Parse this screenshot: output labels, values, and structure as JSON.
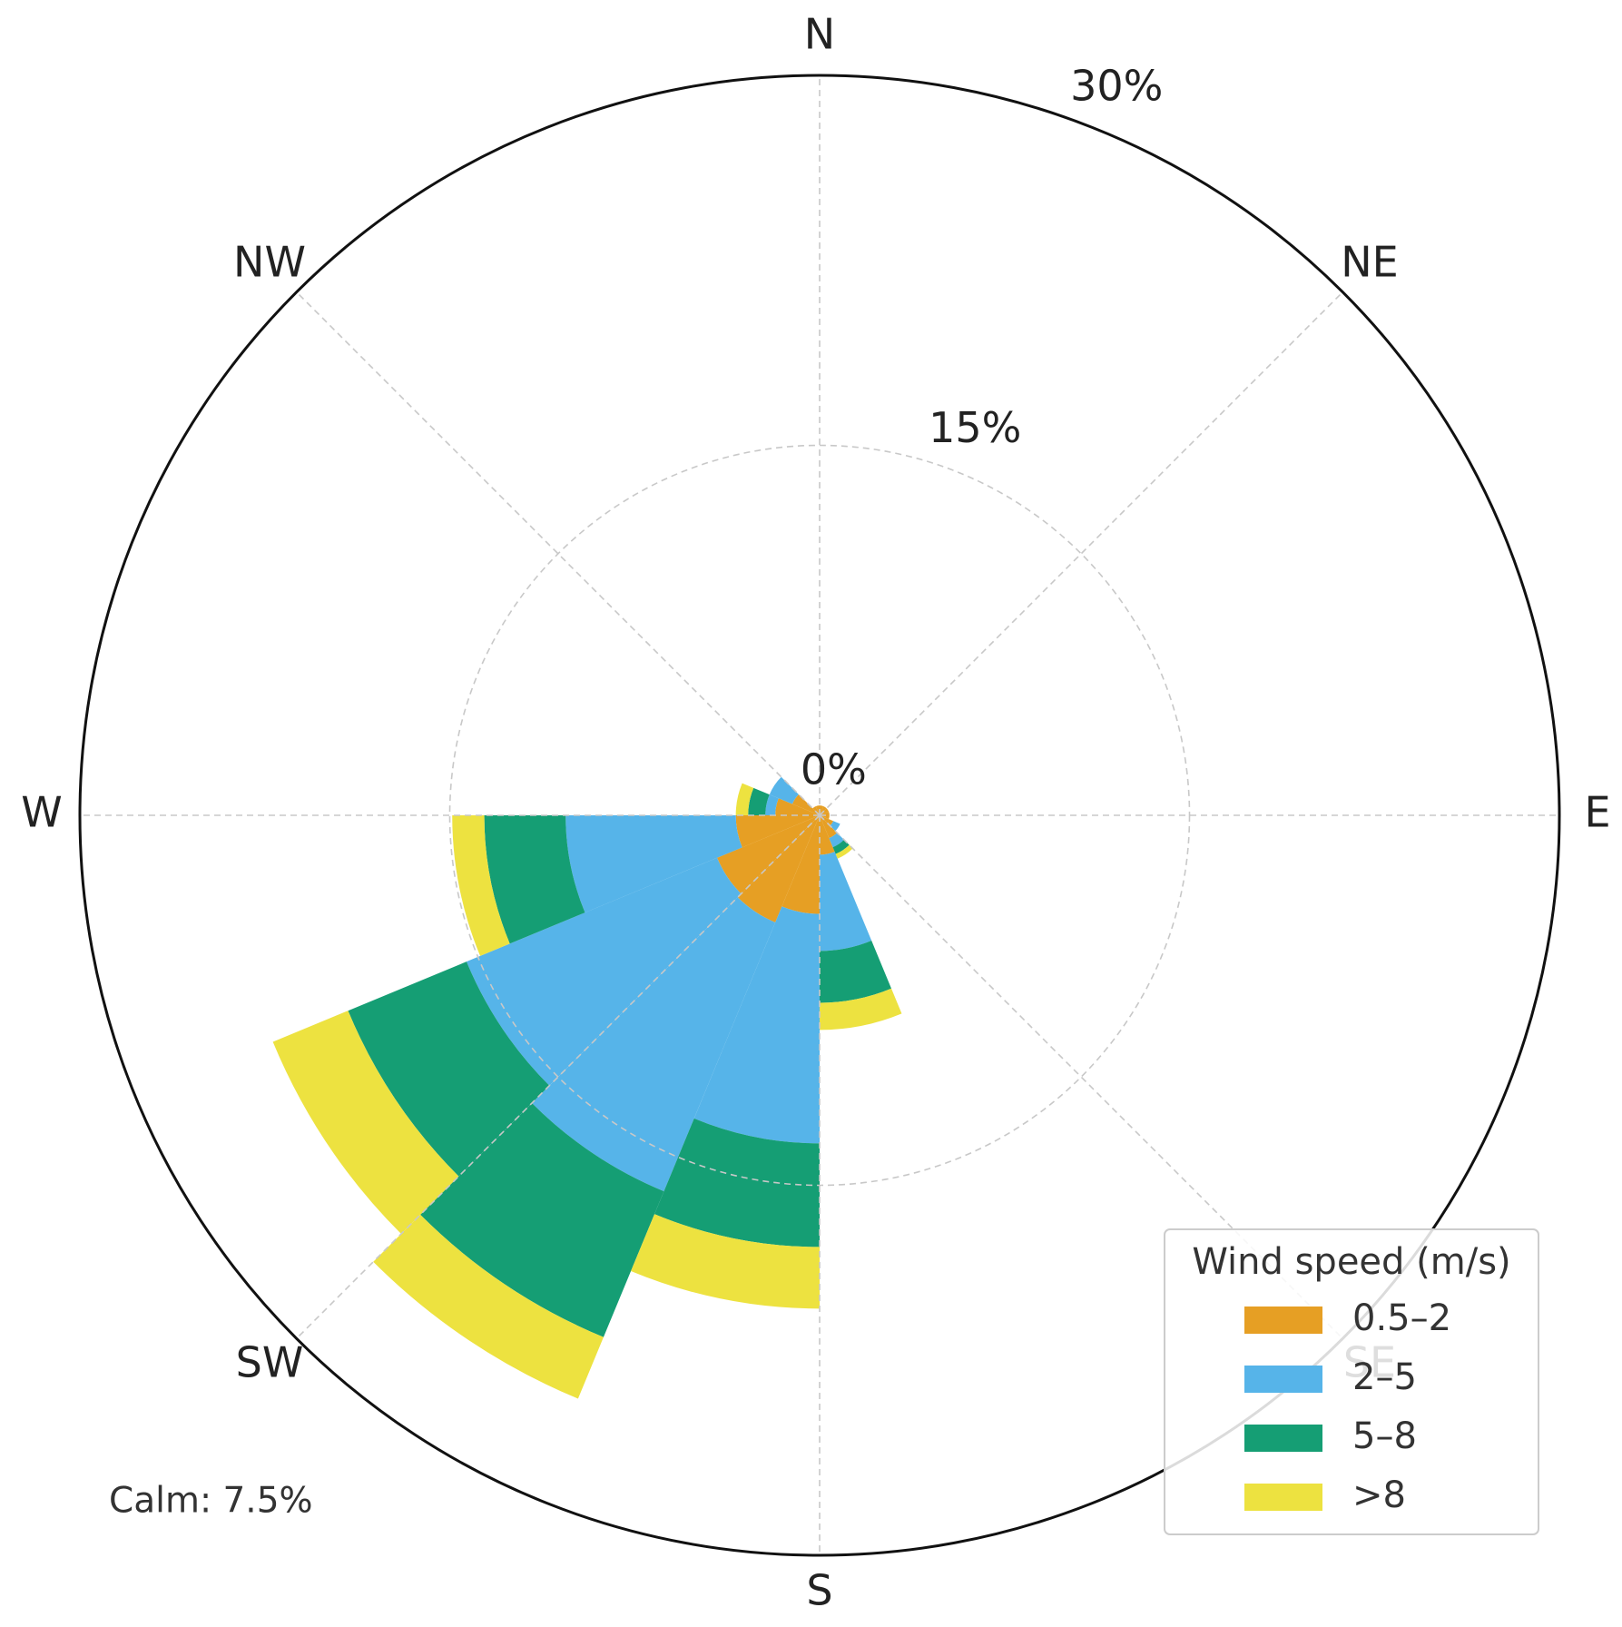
{
  "chart_data": {
    "type": "windrose",
    "directions": [
      "N",
      "NE",
      "E",
      "SE",
      "S",
      "SW",
      "W",
      "NW"
    ],
    "categories": [
      null,
      null,
      null,
      null,
      null,
      null,
      null,
      null,
      null,
      null,
      null,
      null,
      null,
      null,
      null,
      null
    ],
    "series": [
      {
        "name": "0.5–2",
        "color": "#E69F24",
        "values": [
          0.4,
          0.4,
          0.4,
          0.4,
          0.4,
          0.6,
          1.0,
          1.6,
          4.0,
          4.7,
          4.5,
          3.4,
          1.8,
          1.2,
          0.4,
          0.4
        ]
      },
      {
        "name": "2–5",
        "color": "#56B4E9",
        "values": [
          0,
          0,
          0,
          0,
          0,
          0.3,
          0.4,
          3.9,
          9.3,
          11.8,
          11.0,
          6.9,
          0.4,
          1.0,
          0,
          0
        ]
      },
      {
        "name": "5–8",
        "color": "#159E74",
        "values": [
          0,
          0,
          0,
          0,
          0,
          0,
          0.3,
          2.1,
          4.2,
          6.4,
          5.2,
          3.3,
          0.7,
          0,
          0,
          0
        ]
      },
      {
        "name": ">8",
        "color": "#EDE240",
        "values": [
          0,
          0,
          0,
          0,
          0,
          0,
          0.2,
          1.1,
          2.5,
          2.7,
          3.3,
          1.3,
          0.5,
          0,
          0,
          0
        ]
      }
    ],
    "ylim": [
      0,
      30
    ],
    "yticks": [
      {
        "value": 0,
        "label": "0%"
      },
      {
        "value": 15,
        "label": "15%"
      },
      {
        "value": 30,
        "label": "30%"
      }
    ],
    "grid": true,
    "legend_title": "Wind speed (m/s)",
    "legend": "lower right",
    "annotation": "Calm: 7.5%"
  }
}
